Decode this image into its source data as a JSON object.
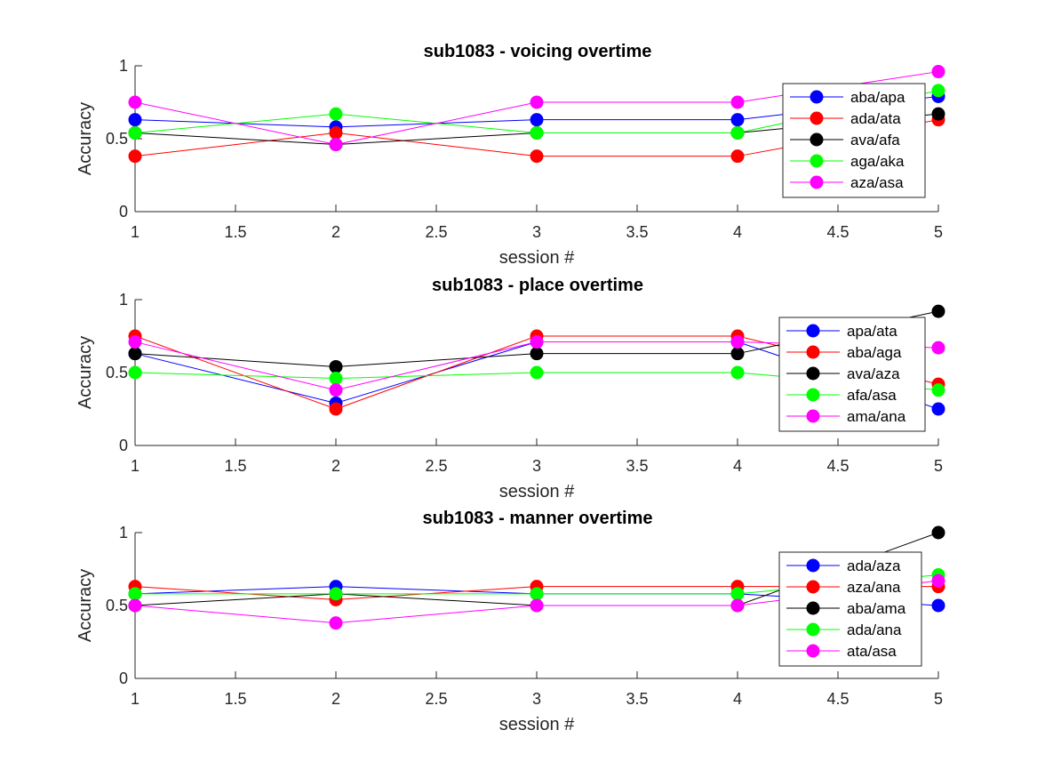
{
  "chart_data": [
    {
      "type": "line",
      "title": "sub1083 - voicing overtime",
      "xlabel": "session #",
      "ylabel": "Accuracy",
      "xlim": [
        1,
        5
      ],
      "ylim": [
        0,
        1
      ],
      "xticks": [
        "1",
        "1.5",
        "2",
        "2.5",
        "3",
        "3.5",
        "4",
        "4.5",
        "5"
      ],
      "yticks": [
        "0",
        "0.5",
        "1"
      ],
      "legend_position": "top-right",
      "x": [
        1,
        2,
        3,
        4,
        5
      ],
      "series": [
        {
          "name": "aba/apa",
          "color": "#0000ff",
          "values": [
            0.63,
            0.58,
            0.63,
            0.63,
            0.79
          ]
        },
        {
          "name": "ada/ata",
          "color": "#ff0000",
          "values": [
            0.38,
            0.54,
            0.38,
            0.38,
            0.63
          ]
        },
        {
          "name": "ava/afa",
          "color": "#000000",
          "values": [
            0.54,
            0.46,
            0.54,
            0.54,
            0.67
          ]
        },
        {
          "name": "aga/aka",
          "color": "#00ff00",
          "values": [
            0.54,
            0.67,
            0.54,
            0.54,
            0.83
          ]
        },
        {
          "name": "aza/asa",
          "color": "#ff00ff",
          "values": [
            0.75,
            0.46,
            0.75,
            0.75,
            0.96
          ]
        }
      ]
    },
    {
      "type": "line",
      "title": "sub1083 - place overtime",
      "xlabel": "session #",
      "ylabel": "Accuracy",
      "xlim": [
        1,
        5
      ],
      "ylim": [
        0,
        1
      ],
      "xticks": [
        "1",
        "1.5",
        "2",
        "2.5",
        "3",
        "3.5",
        "4",
        "4.5",
        "5"
      ],
      "yticks": [
        "0",
        "0.5",
        "1"
      ],
      "legend_position": "top-right",
      "x": [
        1,
        2,
        3,
        4,
        5
      ],
      "series": [
        {
          "name": "apa/ata",
          "color": "#0000ff",
          "values": [
            0.63,
            0.29,
            0.71,
            0.71,
            0.25
          ]
        },
        {
          "name": "aba/aga",
          "color": "#ff0000",
          "values": [
            0.75,
            0.25,
            0.75,
            0.75,
            0.42
          ]
        },
        {
          "name": "ava/aza",
          "color": "#000000",
          "values": [
            0.63,
            0.54,
            0.63,
            0.63,
            0.92
          ]
        },
        {
          "name": "afa/asa",
          "color": "#00ff00",
          "values": [
            0.5,
            0.46,
            0.5,
            0.5,
            0.38
          ]
        },
        {
          "name": "ama/ana",
          "color": "#ff00ff",
          "values": [
            0.71,
            0.38,
            0.71,
            0.71,
            0.67
          ]
        }
      ]
    },
    {
      "type": "line",
      "title": "sub1083 - manner overtime",
      "xlabel": "session #",
      "ylabel": "Accuracy",
      "xlim": [
        1,
        5
      ],
      "ylim": [
        0,
        1
      ],
      "xticks": [
        "1",
        "1.5",
        "2",
        "2.5",
        "3",
        "3.5",
        "4",
        "4.5",
        "5"
      ],
      "yticks": [
        "0",
        "0.5",
        "1"
      ],
      "legend_position": "top-right",
      "x": [
        1,
        2,
        3,
        4,
        5
      ],
      "series": [
        {
          "name": "ada/aza",
          "color": "#0000ff",
          "values": [
            0.58,
            0.63,
            0.58,
            0.58,
            0.5
          ]
        },
        {
          "name": "aza/ana",
          "color": "#ff0000",
          "values": [
            0.63,
            0.54,
            0.63,
            0.63,
            0.63
          ]
        },
        {
          "name": "aba/ama",
          "color": "#000000",
          "values": [
            0.5,
            0.58,
            0.5,
            0.5,
            1.0
          ]
        },
        {
          "name": "ada/ana",
          "color": "#00ff00",
          "values": [
            0.58,
            0.58,
            0.58,
            0.58,
            0.71
          ]
        },
        {
          "name": "ata/asa",
          "color": "#ff00ff",
          "values": [
            0.5,
            0.38,
            0.5,
            0.5,
            0.67
          ]
        }
      ]
    }
  ]
}
